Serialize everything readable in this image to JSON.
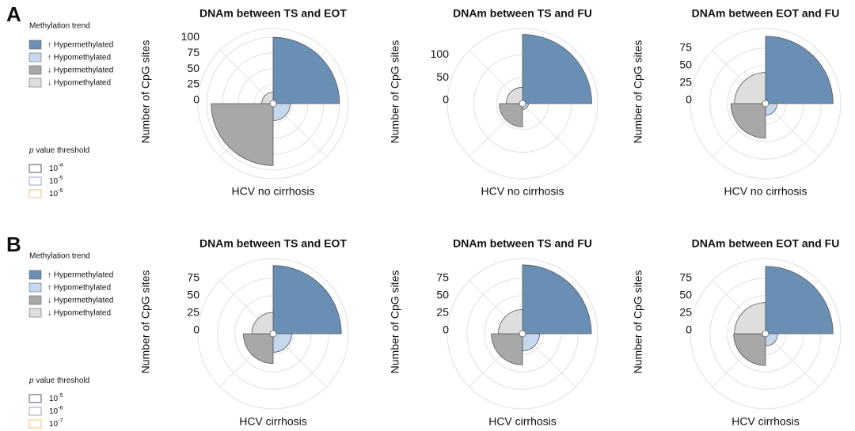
{
  "panels": [
    {
      "label": "A",
      "legend_title": "Methylation trend",
      "legend": [
        {
          "text": "↑ Hypermethylated",
          "color": "#6a8fb5"
        },
        {
          "text": "↑ Hypomethylated",
          "color": "#c5d8ee"
        },
        {
          "text": "↓ Hypermethylated",
          "color": "#a8a8a8"
        },
        {
          "text": "↓ Hypomethylated",
          "color": "#dedede"
        }
      ],
      "threshold_title": {
        "italic": "p",
        "text": " value threshold"
      },
      "thresholds": [
        {
          "base": "10",
          "exponent": "-4",
          "color": "#555555"
        },
        {
          "base": "10",
          "exponent": "-5",
          "color": "#9aa6c8"
        },
        {
          "base": "10",
          "exponent": "-6",
          "color": "#f0c070"
        }
      ]
    },
    {
      "label": "B",
      "legend_title": "Methylation trend",
      "legend": [
        {
          "text": "↑ Hypermethylated",
          "color": "#6a8fb5"
        },
        {
          "text": "↑ Hypomethylated",
          "color": "#c5d8ee"
        },
        {
          "text": "↓ Hypermethylated",
          "color": "#a8a8a8"
        },
        {
          "text": "↓ Hypomethylated",
          "color": "#dedede"
        }
      ],
      "threshold_title": {
        "italic": "p",
        "text": " value threshold"
      },
      "thresholds": [
        {
          "base": "10",
          "exponent": "-5",
          "color": "#555555"
        },
        {
          "base": "10",
          "exponent": "-6",
          "color": "#9aa6c8"
        },
        {
          "base": "10",
          "exponent": "-7",
          "color": "#f0c070"
        }
      ]
    }
  ],
  "chart_data": [
    {
      "type": "rose",
      "title": "DNAm between TS and EOT",
      "xlabel": "HCV no cirrhosis",
      "ylabel": "Number of CpG sites",
      "values": [
        100,
        22,
        93,
        13
      ],
      "colors": [
        "#6a8fb5",
        "#c5d8ee",
        "#a8a8a8",
        "#dedede"
      ],
      "ylim": [
        0,
        114
      ],
      "yticks": [
        0,
        25,
        50,
        75,
        100
      ]
    },
    {
      "type": "rose",
      "title": "DNAm between TS and FU",
      "xlabel": "HCV no cirrhosis",
      "ylabel": "Number of CpG sites",
      "values": [
        145,
        6,
        44,
        29
      ],
      "colors": [
        "#6a8fb5",
        "#c5d8ee",
        "#a8a8a8",
        "#dedede"
      ],
      "ylim": [
        0,
        158
      ],
      "yticks": [
        0,
        50,
        100
      ]
    },
    {
      "type": "rose",
      "title": "DNAm between EOT and FU",
      "xlabel": "HCV no cirrhosis",
      "ylabel": "Number of CpG sites",
      "values": [
        92,
        12,
        45,
        40
      ],
      "colors": [
        "#6a8fb5",
        "#c5d8ee",
        "#a8a8a8",
        "#dedede"
      ],
      "ylim": [
        0,
        103
      ],
      "yticks": [
        0,
        25,
        50,
        75
      ]
    },
    {
      "type": "rose",
      "title": "DNAm between TS and EOT",
      "xlabel": "HCV cirrhosis",
      "ylabel": "Number of CpG sites",
      "values": [
        93,
        22,
        38,
        26
      ],
      "colors": [
        "#6a8fb5",
        "#c5d8ee",
        "#a8a8a8",
        "#dedede"
      ],
      "ylim": [
        0,
        103
      ],
      "yticks": [
        0,
        25,
        50,
        75
      ]
    },
    {
      "type": "rose",
      "title": "DNAm between TS and FU",
      "xlabel": "HCV cirrhosis",
      "ylabel": "Number of CpG sites",
      "values": [
        94,
        20,
        40,
        30
      ],
      "colors": [
        "#6a8fb5",
        "#c5d8ee",
        "#a8a8a8",
        "#dedede"
      ],
      "ylim": [
        0,
        103
      ],
      "yticks": [
        0,
        25,
        50,
        75
      ]
    },
    {
      "type": "rose",
      "title": "DNAm between EOT and FU",
      "xlabel": "HCV cirrhosis",
      "ylabel": "Number of CpG sites",
      "values": [
        92,
        13,
        41,
        40
      ],
      "colors": [
        "#6a8fb5",
        "#c5d8ee",
        "#a8a8a8",
        "#dedede"
      ],
      "ylim": [
        0,
        103
      ],
      "yticks": [
        0,
        25,
        50,
        75
      ]
    }
  ]
}
